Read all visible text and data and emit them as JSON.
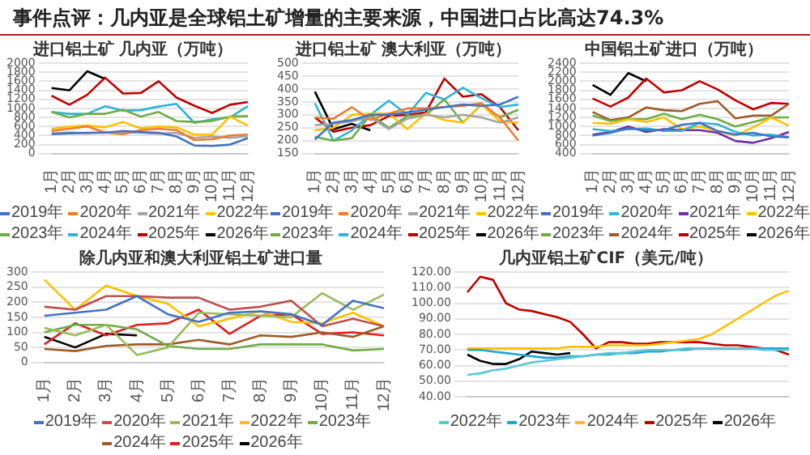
{
  "chart_data": [
    {
      "type": "other",
      "title": "事件点评：几内亚是全球铝土矿增量的主要来源，中国进口占比高达74.3%"
    },
    {
      "type": "line",
      "title": "进口铝土矿 几内亚（万吨）",
      "categories": [
        "1月",
        "2月",
        "3月",
        "4月",
        "5月",
        "6月",
        "7月",
        "8月",
        "9月",
        "10月",
        "11月",
        "12月"
      ],
      "ylim": [
        0,
        2000
      ],
      "yticks": [
        0,
        200,
        400,
        600,
        800,
        1000,
        1200,
        1400,
        1600,
        1800,
        2000
      ],
      "grid": "y",
      "legend": "bottom",
      "marker": "none",
      "series": [
        {
          "name": "2019年",
          "color": "#4472c4",
          "values": [
            430,
            450,
            460,
            460,
            500,
            480,
            460,
            380,
            180,
            170,
            200,
            340
          ]
        },
        {
          "name": "2020年",
          "color": "#ed7d31",
          "values": [
            500,
            550,
            600,
            470,
            430,
            520,
            550,
            520,
            300,
            320,
            400,
            420
          ]
        },
        {
          "name": "2021年",
          "color": "#a5a5a5",
          "values": [
            450,
            470,
            450,
            480,
            470,
            460,
            440,
            460,
            350,
            380,
            350,
            380
          ]
        },
        {
          "name": "2022年",
          "color": "#ffc000",
          "values": [
            550,
            600,
            620,
            580,
            700,
            560,
            600,
            580,
            420,
            420,
            820,
            620
          ]
        },
        {
          "name": "2023年",
          "color": "#70ad47",
          "values": [
            920,
            800,
            880,
            880,
            970,
            820,
            920,
            720,
            700,
            720,
            820,
            830
          ]
        },
        {
          "name": "2024年",
          "color": "#2fb5d6",
          "values": [
            920,
            880,
            880,
            1050,
            950,
            960,
            1040,
            1100,
            680,
            760,
            800,
            1050
          ]
        },
        {
          "name": "2025年",
          "color": "#c00000",
          "values": [
            1280,
            1080,
            1300,
            1680,
            1330,
            1340,
            1600,
            1240,
            1060,
            900,
            1080,
            1140
          ]
        },
        {
          "name": "2026年",
          "color": "#000000",
          "values": [
            1450,
            1400,
            1820,
            1650,
            null,
            null,
            null,
            null,
            null,
            null,
            null,
            null
          ]
        }
      ]
    },
    {
      "type": "line",
      "title": "进口铝土矿 澳大利亚（万吨）",
      "categories": [
        "1月",
        "2月",
        "3月",
        "4月",
        "5月",
        "6月",
        "7月",
        "8月",
        "9月",
        "10月",
        "11月",
        "12月"
      ],
      "ylim": [
        150,
        500
      ],
      "yticks": [
        150,
        200,
        250,
        300,
        350,
        400,
        450,
        500
      ],
      "grid": "y",
      "legend": "bottom",
      "marker": "none",
      "series": [
        {
          "name": "2019年",
          "color": "#4472c4",
          "values": [
            205,
            270,
            280,
            300,
            300,
            310,
            320,
            330,
            340,
            335,
            340,
            370
          ]
        },
        {
          "name": "2020年",
          "color": "#ed7d31",
          "values": [
            290,
            285,
            330,
            280,
            305,
            325,
            325,
            330,
            335,
            345,
            290,
            200
          ]
        },
        {
          "name": "2021年",
          "color": "#a5a5a5",
          "values": [
            260,
            265,
            275,
            290,
            245,
            285,
            300,
            290,
            300,
            290,
            270,
            290
          ]
        },
        {
          "name": "2022年",
          "color": "#ffc000",
          "values": [
            240,
            250,
            300,
            305,
            305,
            245,
            305,
            280,
            270,
            340,
            275,
            270
          ]
        },
        {
          "name": "2023年",
          "color": "#70ad47",
          "values": [
            215,
            200,
            210,
            300,
            250,
            295,
            300,
            360,
            270,
            340,
            290,
            320
          ]
        },
        {
          "name": "2024年",
          "color": "#2fb5d6",
          "values": [
            345,
            200,
            240,
            300,
            355,
            300,
            385,
            360,
            405,
            365,
            330,
            340
          ]
        },
        {
          "name": "2025年",
          "color": "#c00000",
          "values": [
            290,
            235,
            250,
            260,
            295,
            300,
            310,
            440,
            370,
            380,
            330,
            240
          ]
        },
        {
          "name": "2026年",
          "color": "#000000",
          "values": [
            390,
            245,
            265,
            240,
            null,
            null,
            null,
            null,
            null,
            null,
            null,
            null
          ]
        }
      ]
    },
    {
      "type": "line",
      "title": "中国铝土矿进口（万吨）",
      "categories": [
        "1月",
        "2月",
        "3月",
        "4月",
        "5月",
        "6月",
        "7月",
        "8月",
        "9月",
        "10月",
        "11月",
        "12月"
      ],
      "ylim": [
        400,
        2400
      ],
      "yticks": [
        400,
        600,
        800,
        1000,
        1200,
        1400,
        1600,
        1800,
        2000,
        2200,
        2400
      ],
      "grid": "y",
      "legend": "bottom",
      "marker": "none",
      "series": [
        {
          "name": "2019年",
          "color": "#4472c4",
          "values": [
            800,
            860,
            960,
            920,
            920,
            1040,
            1080,
            900,
            820,
            860,
            780,
            760
          ]
        },
        {
          "name": "2020年",
          "color": "#2fb5d6",
          "values": [
            940,
            900,
            940,
            960,
            900,
            900,
            1080,
            1050,
            880,
            800,
            820,
            760
          ]
        },
        {
          "name": "2021年",
          "color": "#7030a0",
          "values": [
            820,
            880,
            1000,
            880,
            940,
            920,
            920,
            860,
            680,
            640,
            740,
            880
          ]
        },
        {
          "name": "2022年",
          "color": "#ffc000",
          "values": [
            1080,
            1060,
            1160,
            1100,
            1200,
            940,
            1000,
            900,
            800,
            980,
            1200,
            1020
          ]
        },
        {
          "name": "2023年",
          "color": "#70ad47",
          "values": [
            1240,
            1120,
            1160,
            1160,
            1280,
            1160,
            1260,
            1160,
            1000,
            1100,
            1200,
            1200
          ]
        },
        {
          "name": "2024年",
          "color": "#9c5b2a",
          "values": [
            1320,
            1140,
            1200,
            1420,
            1360,
            1340,
            1500,
            1560,
            1180,
            1240,
            1240,
            1500
          ]
        },
        {
          "name": "2025年",
          "color": "#c00000",
          "values": [
            1620,
            1440,
            1640,
            2060,
            1750,
            1800,
            2000,
            1820,
            1580,
            1380,
            1520,
            1500
          ]
        },
        {
          "name": "2026年",
          "color": "#000000",
          "values": [
            1920,
            1700,
            2180,
            2000,
            null,
            null,
            null,
            null,
            null,
            null,
            null,
            null
          ]
        }
      ]
    },
    {
      "type": "line",
      "title": "除几内亚和澳大利亚铝土矿进口量",
      "categories": [
        "1月",
        "2月",
        "3月",
        "4月",
        "5月",
        "6月",
        "7月",
        "8月",
        "9月",
        "10月",
        "11月",
        "12月"
      ],
      "ylim": [
        0,
        300
      ],
      "yticks": [
        0,
        50,
        100,
        150,
        200,
        250,
        300
      ],
      "grid": "y",
      "legend": "bottom",
      "marker": "none",
      "series": [
        {
          "name": "2019年",
          "color": "#4472c4",
          "values": [
            155,
            165,
            175,
            220,
            160,
            135,
            165,
            170,
            160,
            125,
            205,
            180
          ]
        },
        {
          "name": "2020年",
          "color": "#c0504d",
          "values": [
            185,
            175,
            220,
            220,
            215,
            215,
            175,
            185,
            205,
            120,
            145,
            120
          ]
        },
        {
          "name": "2021年",
          "color": "#9bbb59",
          "values": [
            115,
            90,
            125,
            25,
            50,
            165,
            160,
            155,
            150,
            230,
            175,
            225
          ]
        },
        {
          "name": "2022年",
          "color": "#ffc000",
          "values": [
            275,
            175,
            255,
            220,
            195,
            120,
            145,
            170,
            135,
            130,
            165,
            120
          ]
        },
        {
          "name": "2023年",
          "color": "#70ad47",
          "values": [
            100,
            125,
            125,
            110,
            55,
            45,
            45,
            60,
            60,
            60,
            40,
            45
          ]
        },
        {
          "name": "2024年",
          "color": "#9c5b2a",
          "values": [
            45,
            38,
            55,
            60,
            60,
            75,
            60,
            90,
            85,
            100,
            85,
            120
          ]
        },
        {
          "name": "2025年",
          "color": "#e02020",
          "values": [
            60,
            130,
            90,
            125,
            130,
            175,
            95,
            155,
            160,
            95,
            100,
            90
          ]
        },
        {
          "name": "2026年",
          "color": "#000000",
          "values": [
            85,
            50,
            95,
            90,
            null,
            null,
            null,
            null,
            null,
            null,
            null,
            null
          ]
        }
      ]
    },
    {
      "type": "line",
      "title": "几内亚铝土矿CIF（美元/吨）",
      "categories": [
        null,
        null,
        null,
        null,
        null,
        null,
        null,
        null,
        null,
        null,
        null,
        null,
        null,
        null,
        null,
        null,
        null,
        null,
        null,
        null,
        null,
        null,
        null,
        null,
        null,
        null
      ],
      "ylim": [
        40,
        120
      ],
      "yticks": [
        {
          "value": 40,
          "label": "40.00"
        },
        {
          "value": 50,
          "label": "50.00"
        },
        {
          "value": 60,
          "label": "60.00"
        },
        {
          "value": 70,
          "label": "70.00"
        },
        {
          "value": 80,
          "label": "80.00"
        },
        {
          "value": 90,
          "label": "90.00"
        },
        {
          "value": 100,
          "label": "100.00"
        },
        {
          "value": 110,
          "label": "110.00"
        },
        {
          "value": 120,
          "label": "120.00"
        }
      ],
      "grid": "y",
      "legend": "bottom",
      "marker": "none",
      "series": [
        {
          "name": "2022年",
          "color": "#5bc8d0",
          "values": [
            54,
            55,
            57,
            58,
            60,
            62,
            63,
            64,
            65,
            66,
            67,
            68,
            68,
            69,
            70,
            70,
            70,
            71,
            71,
            71,
            71,
            71,
            71,
            70,
            70,
            70
          ]
        },
        {
          "name": "2023年",
          "color": "#1fa4d8",
          "values": [
            70,
            70,
            69,
            68,
            67,
            66,
            65,
            65,
            66,
            66,
            67,
            67,
            68,
            68,
            69,
            69,
            70,
            70,
            71,
            71,
            71,
            71,
            71,
            71,
            71,
            71
          ]
        },
        {
          "name": "2024年",
          "color": "#ffc000",
          "values": [
            71,
            71,
            71,
            71,
            71,
            71,
            71,
            71,
            72,
            72,
            72,
            73,
            73,
            73,
            73,
            74,
            75,
            76,
            77,
            80,
            85,
            90,
            95,
            100,
            105,
            108
          ]
        },
        {
          "name": "2025年",
          "color": "#c00000",
          "values": [
            107,
            117,
            115,
            100,
            96,
            95,
            93,
            91,
            88,
            80,
            71,
            75,
            75,
            74,
            74,
            75,
            75,
            75,
            75,
            74,
            73,
            73,
            72,
            71,
            70,
            67
          ]
        },
        {
          "name": "2026年",
          "color": "#000000",
          "values": [
            67,
            63,
            61,
            61,
            64,
            69,
            68,
            67,
            68,
            null,
            null,
            null,
            null,
            null,
            null,
            null,
            null,
            null,
            null,
            null,
            null,
            null,
            null,
            null,
            null,
            null
          ]
        }
      ]
    }
  ]
}
